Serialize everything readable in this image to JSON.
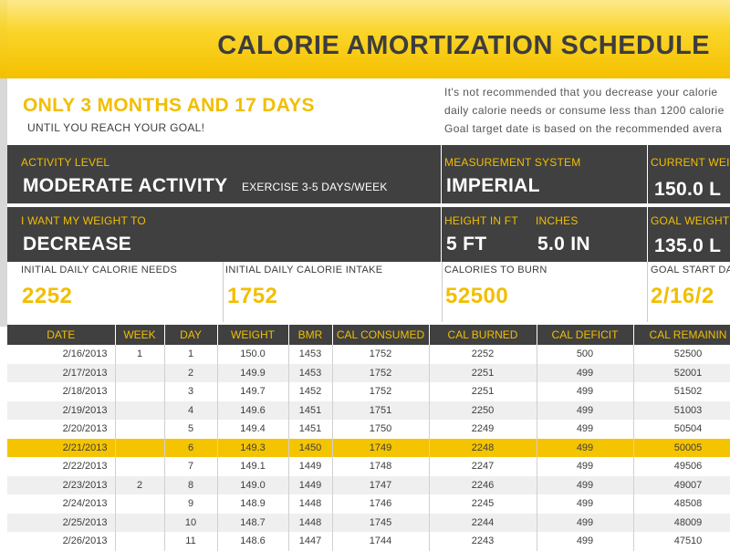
{
  "title": "CALORIE AMORTIZATION SCHEDULE",
  "goal": {
    "headline": "ONLY 3 MONTHS AND 17 DAYS",
    "subtext": "UNTIL YOU REACH YOUR GOAL!"
  },
  "notes": {
    "line1": "It's not recommended that you decrease your calorie",
    "line2": "daily calorie needs or consume less than 1200 calorie",
    "line3": "Goal target date is based on the recommended avera"
  },
  "activity": {
    "label": "ACTIVITY LEVEL",
    "value": "MODERATE ACTIVITY",
    "detail": "EXERCISE 3-5 DAYS/WEEK"
  },
  "measurement": {
    "label": "MEASUREMENT SYSTEM",
    "value": "IMPERIAL"
  },
  "current_weight": {
    "label": "CURRENT WEIG",
    "value": "150.0 L"
  },
  "weight_direction": {
    "label": "I WANT MY WEIGHT TO",
    "value": "DECREASE"
  },
  "height": {
    "ft_label": "HEIGHT IN FT",
    "ft_value": "5 FT",
    "in_label": "INCHES",
    "in_value": "5.0 IN"
  },
  "goal_weight": {
    "label": "GOAL WEIGHT",
    "value": "135.0 L"
  },
  "summary": {
    "needs_label": "INITIAL DAILY CALORIE NEEDS",
    "needs_value": "2252",
    "intake_label": "INITIAL DAILY CALORIE INTAKE",
    "intake_value": "1752",
    "burn_label": "CALORIES TO BURN",
    "burn_value": "52500",
    "start_label": "GOAL START DA",
    "start_value": "2/16/2"
  },
  "table": {
    "headers": [
      "DATE",
      "WEEK",
      "DAY",
      "WEIGHT",
      "BMR",
      "CAL CONSUMED",
      "CAL BURNED",
      "CAL DEFICIT",
      "CAL REMAININ"
    ],
    "rows": [
      [
        "2/16/2013",
        "1",
        "1",
        "150.0",
        "1453",
        "1752",
        "2252",
        "500",
        "52500"
      ],
      [
        "2/17/2013",
        "",
        "2",
        "149.9",
        "1453",
        "1752",
        "2251",
        "499",
        "52001"
      ],
      [
        "2/18/2013",
        "",
        "3",
        "149.7",
        "1452",
        "1752",
        "2251",
        "499",
        "51502"
      ],
      [
        "2/19/2013",
        "",
        "4",
        "149.6",
        "1451",
        "1751",
        "2250",
        "499",
        "51003"
      ],
      [
        "2/20/2013",
        "",
        "5",
        "149.4",
        "1451",
        "1750",
        "2249",
        "499",
        "50504"
      ],
      [
        "2/21/2013",
        "",
        "6",
        "149.3",
        "1450",
        "1749",
        "2248",
        "499",
        "50005"
      ],
      [
        "2/22/2013",
        "",
        "7",
        "149.1",
        "1449",
        "1748",
        "2247",
        "499",
        "49506"
      ],
      [
        "2/23/2013",
        "2",
        "8",
        "149.0",
        "1449",
        "1747",
        "2246",
        "499",
        "49007"
      ],
      [
        "2/24/2013",
        "",
        "9",
        "148.9",
        "1448",
        "1746",
        "2245",
        "499",
        "48508"
      ],
      [
        "2/25/2013",
        "",
        "10",
        "148.7",
        "1448",
        "1745",
        "2244",
        "499",
        "48009"
      ],
      [
        "2/26/2013",
        "",
        "11",
        "148.6",
        "1447",
        "1744",
        "2243",
        "499",
        "47510"
      ]
    ],
    "highlighted_row": 5
  },
  "colors": {
    "accent": "#f2be00",
    "dark": "#404040",
    "highlight": "#f5c400"
  }
}
